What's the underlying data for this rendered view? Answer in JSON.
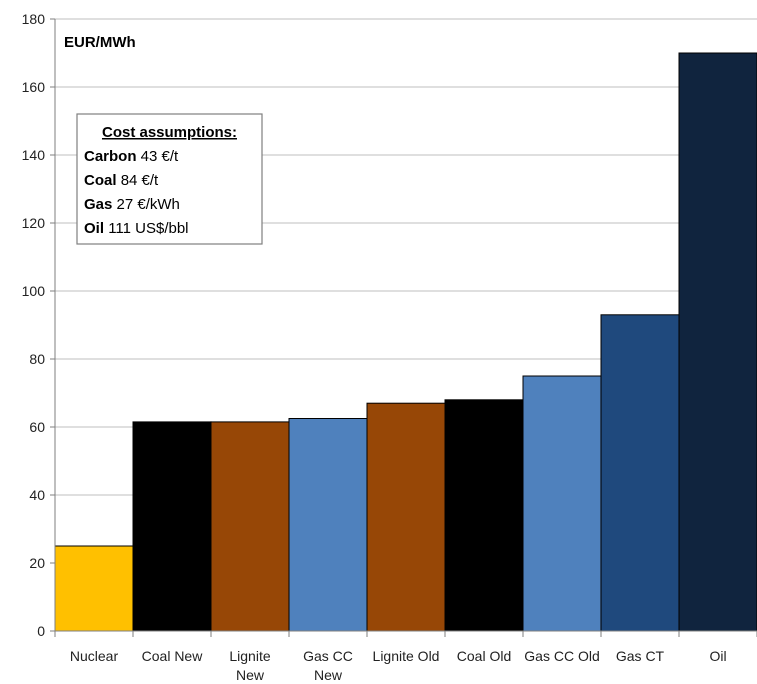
{
  "chart_data": {
    "type": "bar",
    "unit_label": "EUR/MWh",
    "categories": [
      "Nuclear",
      "Coal New",
      "Lignite New",
      "Gas CC New",
      "Lignite Old",
      "Coal Old",
      "Gas CC Old",
      "Gas CT",
      "Oil"
    ],
    "category_lines": [
      [
        "Nuclear"
      ],
      [
        "Coal New"
      ],
      [
        "Lignite",
        "New"
      ],
      [
        "Gas CC",
        "New"
      ],
      [
        "Lignite Old"
      ],
      [
        "Coal Old"
      ],
      [
        "Gas CC Old"
      ],
      [
        "Gas CT"
      ],
      [
        "Oil"
      ]
    ],
    "values": [
      25,
      61.5,
      61.5,
      62.5,
      67,
      68,
      75,
      93,
      170
    ],
    "colors": [
      "#ffc000",
      "#000000",
      "#974706",
      "#4f81bd",
      "#974706",
      "#000000",
      "#4f81bd",
      "#1f497d",
      "#10243e"
    ],
    "ylim": [
      0,
      180
    ],
    "yticks": [
      0,
      20,
      40,
      60,
      80,
      100,
      120,
      140,
      160,
      180
    ],
    "grid": true,
    "annotation_box": {
      "title": "Cost assumptions:",
      "lines": [
        {
          "label": "Carbon",
          "value": "43 €/t"
        },
        {
          "label": "Coal",
          "value": "84 €/t"
        },
        {
          "label": "Gas",
          "value": "27 €/kWh"
        },
        {
          "label": "Oil",
          "value": "111 US$/bbl"
        }
      ]
    }
  }
}
